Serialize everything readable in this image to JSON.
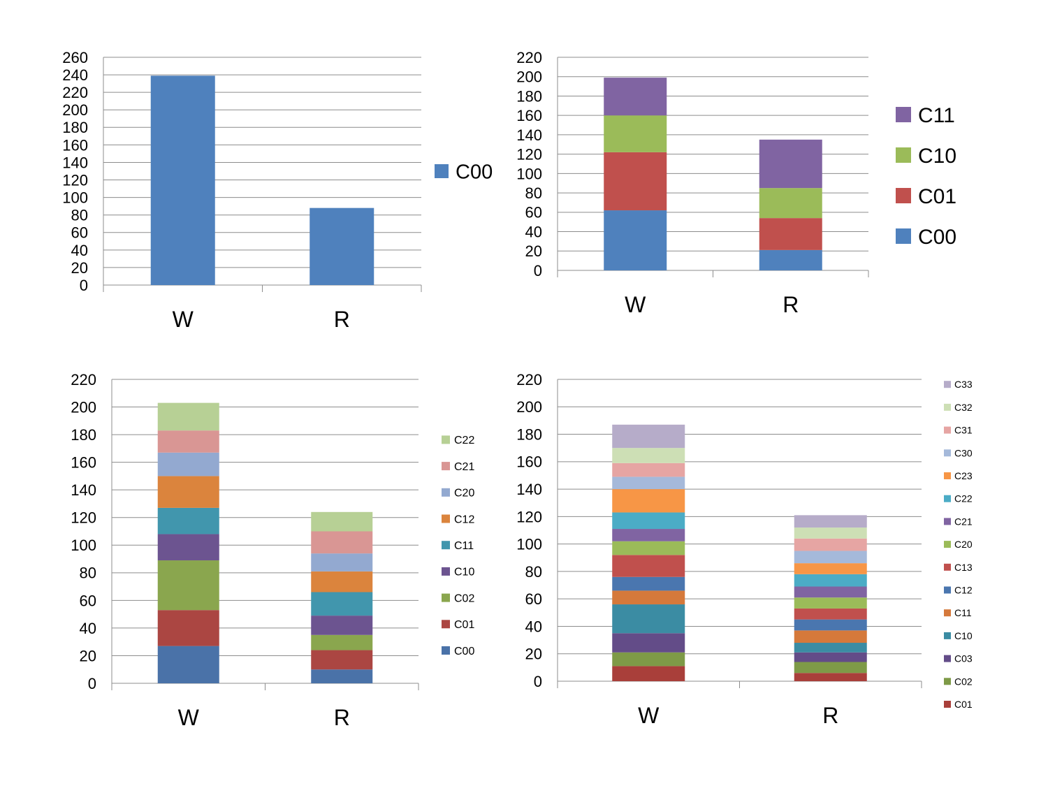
{
  "chart_data": [
    {
      "type": "bar",
      "stacked": true,
      "categories": [
        "W",
        "R"
      ],
      "ylim": [
        0,
        260
      ],
      "yticks": [
        0,
        20,
        40,
        60,
        80,
        100,
        120,
        140,
        160,
        180,
        200,
        220,
        240,
        260
      ],
      "grid": true,
      "legend_position": "right",
      "series": [
        {
          "name": "C00",
          "values": [
            239,
            88
          ],
          "color": "#4f81bd"
        }
      ]
    },
    {
      "type": "bar",
      "stacked": true,
      "categories": [
        "W",
        "R"
      ],
      "ylim": [
        0,
        220
      ],
      "yticks": [
        0,
        20,
        40,
        60,
        80,
        100,
        120,
        140,
        160,
        180,
        200,
        220
      ],
      "grid": true,
      "legend_position": "right",
      "series": [
        {
          "name": "C00",
          "values": [
            62,
            21
          ],
          "color": "#4f81bd"
        },
        {
          "name": "C01",
          "values": [
            60,
            33
          ],
          "color": "#c0504d"
        },
        {
          "name": "C10",
          "values": [
            38,
            31
          ],
          "color": "#9bbb59"
        },
        {
          "name": "C11",
          "values": [
            39,
            50
          ],
          "color": "#8064a2"
        }
      ]
    },
    {
      "type": "bar",
      "stacked": true,
      "categories": [
        "W",
        "R"
      ],
      "ylim": [
        0,
        220
      ],
      "yticks": [
        0,
        20,
        40,
        60,
        80,
        100,
        120,
        140,
        160,
        180,
        200,
        220
      ],
      "grid": true,
      "legend_position": "right",
      "series": [
        {
          "name": "C00",
          "values": [
            27,
            10
          ],
          "color": "#4a72a8"
        },
        {
          "name": "C01",
          "values": [
            26,
            14
          ],
          "color": "#ab4642"
        },
        {
          "name": "C02",
          "values": [
            36,
            11
          ],
          "color": "#8aa64e"
        },
        {
          "name": "C10",
          "values": [
            19,
            14
          ],
          "color": "#6c5490"
        },
        {
          "name": "C11",
          "values": [
            19,
            17
          ],
          "color": "#4196ad"
        },
        {
          "name": "C12",
          "values": [
            23,
            15
          ],
          "color": "#db843d"
        },
        {
          "name": "C20",
          "values": [
            17,
            13
          ],
          "color": "#93a9d0"
        },
        {
          "name": "C21",
          "values": [
            16,
            16
          ],
          "color": "#d99694"
        },
        {
          "name": "C22",
          "values": [
            20,
            14
          ],
          "color": "#b7d095"
        }
      ]
    },
    {
      "type": "bar",
      "stacked": true,
      "categories": [
        "W",
        "R"
      ],
      "ylim": [
        0,
        220
      ],
      "yticks": [
        0,
        20,
        40,
        60,
        80,
        100,
        120,
        140,
        160,
        180,
        200,
        220
      ],
      "grid": true,
      "legend_position": "right",
      "series": [
        {
          "name": "C01",
          "values": [
            11,
            6
          ],
          "color": "#a93f3a"
        },
        {
          "name": "C02",
          "values": [
            10,
            8
          ],
          "color": "#7e9a47"
        },
        {
          "name": "C03",
          "values": [
            14,
            7
          ],
          "color": "#634c88"
        },
        {
          "name": "C10",
          "values": [
            21,
            7
          ],
          "color": "#3b8ca3"
        },
        {
          "name": "C11",
          "values": [
            10,
            9
          ],
          "color": "#d5793b"
        },
        {
          "name": "C12",
          "values": [
            10,
            8
          ],
          "color": "#4a76af"
        },
        {
          "name": "C13",
          "values": [
            16,
            8
          ],
          "color": "#c0504d"
        },
        {
          "name": "C20",
          "values": [
            10,
            8
          ],
          "color": "#9bbb59"
        },
        {
          "name": "C21",
          "values": [
            9,
            8
          ],
          "color": "#8064a2"
        },
        {
          "name": "C22",
          "values": [
            12,
            9
          ],
          "color": "#4bacc6"
        },
        {
          "name": "C23",
          "values": [
            17,
            8
          ],
          "color": "#f79646"
        },
        {
          "name": "C30",
          "values": [
            9,
            9
          ],
          "color": "#a5b9da"
        },
        {
          "name": "C31",
          "values": [
            10,
            9
          ],
          "color": "#e6a5a3"
        },
        {
          "name": "C32",
          "values": [
            11,
            8
          ],
          "color": "#cddfb5"
        },
        {
          "name": "C33",
          "values": [
            17,
            9
          ],
          "color": "#b6acc9"
        }
      ]
    }
  ]
}
